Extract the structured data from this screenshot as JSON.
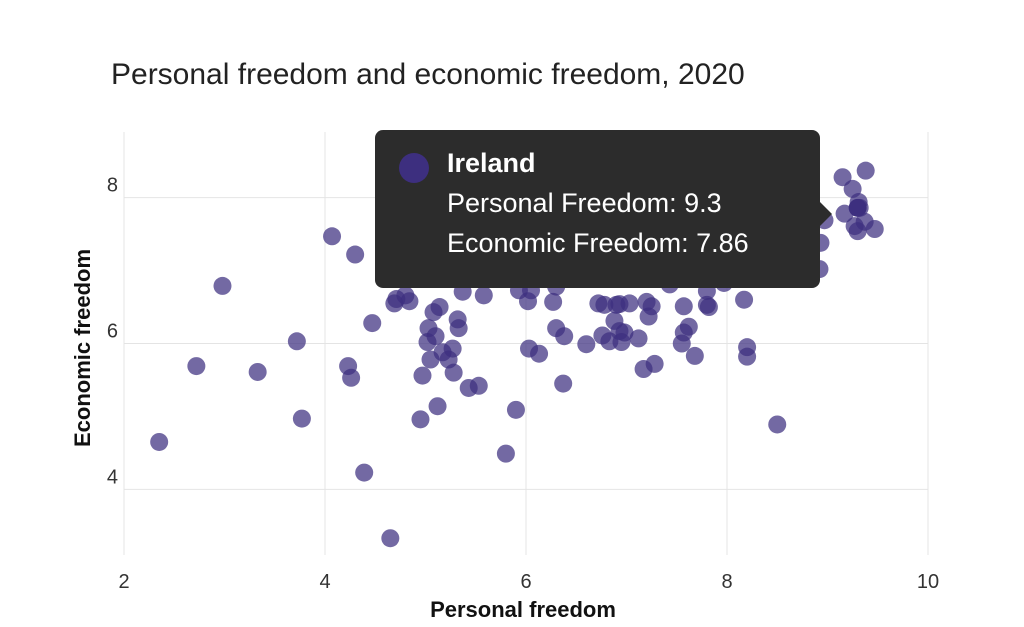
{
  "chart_data": {
    "type": "scatter",
    "title": "Personal freedom and economic freedom, 2020",
    "xlabel": "Personal freedom",
    "ylabel": "Economic freedom",
    "xlim": [
      2,
      10
    ],
    "ylim": [
      3.1,
      8.9
    ],
    "xticks": [
      "2",
      "4",
      "6",
      "8",
      "10"
    ],
    "yticks": [
      "4",
      "6",
      "8"
    ],
    "grid": true,
    "marker_color": "#3d2f7f",
    "points": [
      [
        2.35,
        4.65
      ],
      [
        2.72,
        5.69
      ],
      [
        2.98,
        6.79
      ],
      [
        3.33,
        5.61
      ],
      [
        3.72,
        6.03
      ],
      [
        3.77,
        4.97
      ],
      [
        4.07,
        7.47
      ],
      [
        4.23,
        5.69
      ],
      [
        4.26,
        5.53
      ],
      [
        4.3,
        7.22
      ],
      [
        4.39,
        4.23
      ],
      [
        4.47,
        6.28
      ],
      [
        4.65,
        3.33
      ],
      [
        4.69,
        6.55
      ],
      [
        4.71,
        6.61
      ],
      [
        4.8,
        6.66
      ],
      [
        4.84,
        6.58
      ],
      [
        4.95,
        4.96
      ],
      [
        4.97,
        5.56
      ],
      [
        5.02,
        6.02
      ],
      [
        5.03,
        6.21
      ],
      [
        5.05,
        5.78
      ],
      [
        5.08,
        6.43
      ],
      [
        5.1,
        6.1
      ],
      [
        5.12,
        5.14
      ],
      [
        5.14,
        6.5
      ],
      [
        5.17,
        5.88
      ],
      [
        5.23,
        5.78
      ],
      [
        5.27,
        5.93
      ],
      [
        5.28,
        5.6
      ],
      [
        5.32,
        6.33
      ],
      [
        5.33,
        6.21
      ],
      [
        5.37,
        6.71
      ],
      [
        5.43,
        5.39
      ],
      [
        5.53,
        5.42
      ],
      [
        5.58,
        6.66
      ],
      [
        5.9,
        5.09
      ],
      [
        5.8,
        4.49
      ],
      [
        5.93,
        6.73
      ],
      [
        6.02,
        6.58
      ],
      [
        6.05,
        6.73
      ],
      [
        6.03,
        5.93
      ],
      [
        6.13,
        5.86
      ],
      [
        6.27,
        6.57
      ],
      [
        6.3,
        6.78
      ],
      [
        6.3,
        6.21
      ],
      [
        6.38,
        6.1
      ],
      [
        6.37,
        5.45
      ],
      [
        6.6,
        5.99
      ],
      [
        6.72,
        6.55
      ],
      [
        6.76,
        6.11
      ],
      [
        6.78,
        6.53
      ],
      [
        6.83,
        6.03
      ],
      [
        6.88,
        6.31
      ],
      [
        6.9,
        6.53
      ],
      [
        6.93,
        6.17
      ],
      [
        6.93,
        6.54
      ],
      [
        6.95,
        6.02
      ],
      [
        6.98,
        6.15
      ],
      [
        7.03,
        6.55
      ],
      [
        7.12,
        6.07
      ],
      [
        7.17,
        5.65
      ],
      [
        7.2,
        6.57
      ],
      [
        7.22,
        6.37
      ],
      [
        7.25,
        6.51
      ],
      [
        7.28,
        5.72
      ],
      [
        7.43,
        6.81
      ],
      [
        7.55,
        6.0
      ],
      [
        7.57,
        6.15
      ],
      [
        7.57,
        6.51
      ],
      [
        7.62,
        6.23
      ],
      [
        7.68,
        5.83
      ],
      [
        7.8,
        6.72
      ],
      [
        7.8,
        6.53
      ],
      [
        7.82,
        6.5
      ],
      [
        7.97,
        6.83
      ],
      [
        8.17,
        6.6
      ],
      [
        8.2,
        5.95
      ],
      [
        8.2,
        5.82
      ],
      [
        8.5,
        4.89
      ],
      [
        8.92,
        7.02
      ],
      [
        8.93,
        7.38
      ],
      [
        8.97,
        7.69
      ],
      [
        9.15,
        8.28
      ],
      [
        9.17,
        7.78
      ],
      [
        9.25,
        8.12
      ],
      [
        9.27,
        7.61
      ],
      [
        9.3,
        7.54
      ],
      [
        9.31,
        7.94
      ],
      [
        9.32,
        7.86
      ],
      [
        9.37,
        7.67
      ],
      [
        9.38,
        8.37
      ],
      [
        9.47,
        7.57
      ]
    ],
    "highlight": {
      "country": "Ireland",
      "x": 9.3,
      "y": 7.86,
      "x_text": "Personal Freedom: 9.3",
      "y_text": "Economic Freedom: 7.86"
    }
  }
}
